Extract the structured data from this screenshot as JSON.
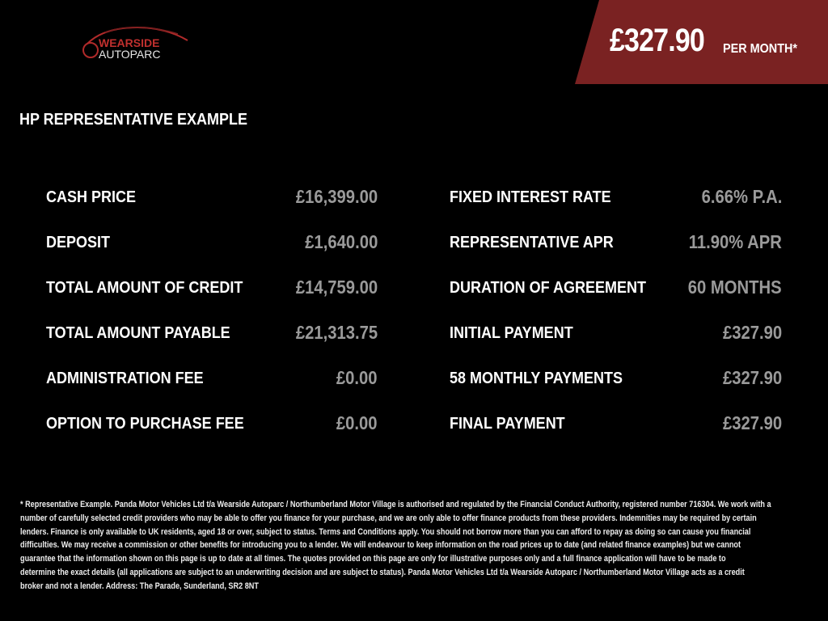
{
  "logo": {
    "line1": "WEARSIDE",
    "line2": "AUTOPARC"
  },
  "header": {
    "monthly_price": "£327.90",
    "per_month_label": "PER MONTH*",
    "accent_color": "#7a2222"
  },
  "title": "HP REPRESENTATIVE EXAMPLE",
  "left_rows": [
    {
      "label": "CASH PRICE",
      "value": "£16,399.00"
    },
    {
      "label": "DEPOSIT",
      "value": "£1,640.00"
    },
    {
      "label": "TOTAL AMOUNT OF CREDIT",
      "value": "£14,759.00"
    },
    {
      "label": "TOTAL AMOUNT PAYABLE",
      "value": "£21,313.75"
    },
    {
      "label": "ADMINISTRATION FEE",
      "value": "£0.00"
    },
    {
      "label": "OPTION TO PURCHASE FEE",
      "value": "£0.00"
    }
  ],
  "right_rows": [
    {
      "label": "FIXED INTEREST RATE",
      "value": "6.66% P.A."
    },
    {
      "label": "REPRESENTATIVE APR",
      "value": "11.90% APR"
    },
    {
      "label": "DURATION OF AGREEMENT",
      "value": "60 MONTHS"
    },
    {
      "label": "INITIAL PAYMENT",
      "value": "£327.90"
    },
    {
      "label": "58 MONTHLY PAYMENTS",
      "value": "£327.90"
    },
    {
      "label": "FINAL PAYMENT",
      "value": "£327.90"
    }
  ],
  "disclaimer_lines": [
    "* Representative Example. Panda Motor Vehicles Ltd t/a Wearside Autoparc / Northumberland Motor Village is authorised and regulated by the Financial Conduct Authority, registered number 716304. We work with a",
    "number of carefully selected credit providers who may be able to offer you finance for your purchase, and we are only able to offer finance products from these providers. Indemnities may be required by certain",
    "lenders. Finance is only available to UK residents, aged 18 or over, subject to status. Terms and Conditions apply. You should not borrow more than you can afford to repay as doing so can cause you financial",
    "difficulties. We may receive a commission or other benefits for introducing you to a lender. We will endeavour to keep information on the road prices up to date (and related finance examples) but we cannot",
    "guarantee that the information shown on this page is up to date at all times. The quotes provided on this page are only for illustrative purposes only and a full finance application will have to be made to",
    "determine the exact details (all applications are subject to an underwriting decision and are subject to status). Panda Motor Vehicles Ltd t/a Wearside Autoparc / Northumberland Motor Village acts as a credit",
    "broker and not a lender. Address: The Parade, Sunderland, SR2 8NT"
  ]
}
